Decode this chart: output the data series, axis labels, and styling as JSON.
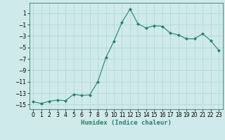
{
  "x": [
    0,
    1,
    2,
    3,
    4,
    5,
    6,
    7,
    8,
    9,
    10,
    11,
    12,
    13,
    14,
    15,
    16,
    17,
    18,
    19,
    20,
    21,
    22,
    23
  ],
  "y": [
    -14.5,
    -14.8,
    -14.4,
    -14.2,
    -14.3,
    -13.2,
    -13.4,
    -13.3,
    -11.0,
    -6.8,
    -3.9,
    -0.6,
    1.7,
    -0.9,
    -1.6,
    -1.2,
    -1.3,
    -2.5,
    -2.8,
    -3.5,
    -3.5,
    -2.6,
    -3.8,
    -5.5
  ],
  "xlabel": "Humidex (Indice chaleur)",
  "line_color": "#2e7d6e",
  "marker": "D",
  "marker_size": 2.0,
  "bg_color": "#ceeaea",
  "grid_color": "#b8d8d8",
  "xlim": [
    -0.5,
    23.5
  ],
  "ylim": [
    -15.8,
    2.8
  ],
  "yticks": [
    1,
    -1,
    -3,
    -5,
    -7,
    -9,
    -11,
    -13,
    -15
  ],
  "xticks": [
    0,
    1,
    2,
    3,
    4,
    5,
    6,
    7,
    8,
    9,
    10,
    11,
    12,
    13,
    14,
    15,
    16,
    17,
    18,
    19,
    20,
    21,
    22,
    23
  ],
  "tick_fontsize": 5.5,
  "xlabel_fontsize": 6.5
}
